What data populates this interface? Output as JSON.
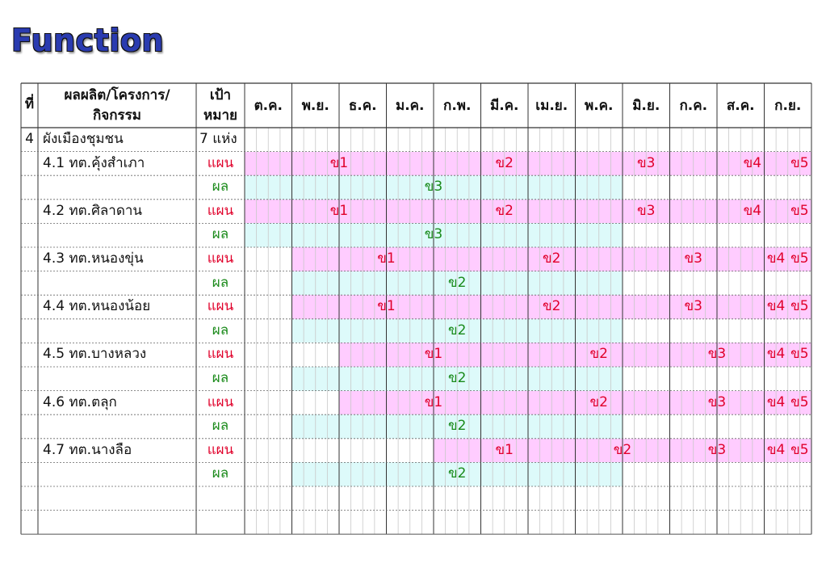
{
  "title": "Function",
  "headers": {
    "no": "ที่",
    "activity_line1": "ผลผลิต/โครงการ/",
    "activity_line2": "กิจกรรม",
    "target_line1": "เป้า",
    "target_line2": "หมาย",
    "months": [
      "ต.ค.",
      "พ.ย.",
      "ธ.ค.",
      "ม.ค.",
      "ก.พ.",
      "มี.ค.",
      "เม.ย.",
      "พ.ค.",
      "มิ.ย.",
      "ก.ค.",
      "ส.ค.",
      "ก.ย."
    ]
  },
  "section": {
    "no": "4",
    "name": "ผังเมืองชุมชน",
    "target": "7 แห่ง"
  },
  "plan_label": "แผน",
  "result_label": "ผล",
  "items": [
    {
      "name": "4.1 ทต.คุ้งสำเภา",
      "plan": [
        {
          "label": "ข1",
          "start": 0,
          "end": 4
        },
        {
          "label": "ข2",
          "start": 4,
          "end": 7
        },
        {
          "label": "ข3",
          "start": 7,
          "end": 10
        },
        {
          "label": "ข4",
          "start": 10,
          "end": 11.5
        },
        {
          "label": "ข5",
          "start": 11.5,
          "end": 12
        }
      ],
      "result": [
        {
          "label": "ข3",
          "start": 0,
          "end": 8
        }
      ]
    },
    {
      "name": "4.2 ทต.ศิลาดาน",
      "plan": [
        {
          "label": "ข1",
          "start": 0,
          "end": 4
        },
        {
          "label": "ข2",
          "start": 4,
          "end": 7
        },
        {
          "label": "ข3",
          "start": 7,
          "end": 10
        },
        {
          "label": "ข4",
          "start": 10,
          "end": 11.5
        },
        {
          "label": "ข5",
          "start": 11.5,
          "end": 12
        }
      ],
      "result": [
        {
          "label": "ข3",
          "start": 0,
          "end": 8
        }
      ]
    },
    {
      "name": "4.3 ทต.หนองขุ่น",
      "plan": [
        {
          "label": "ข1",
          "start": 1,
          "end": 5
        },
        {
          "label": "ข2",
          "start": 5,
          "end": 8
        },
        {
          "label": "ข3",
          "start": 8,
          "end": 11
        },
        {
          "label": "ข4",
          "start": 11,
          "end": 11.5
        },
        {
          "label": "ข5",
          "start": 11.5,
          "end": 12
        }
      ],
      "result": [
        {
          "label": "ข2",
          "start": 1,
          "end": 8
        }
      ]
    },
    {
      "name": "4.4 ทต.หนองน้อย",
      "plan": [
        {
          "label": "ข1",
          "start": 1,
          "end": 5
        },
        {
          "label": "ข2",
          "start": 5,
          "end": 8
        },
        {
          "label": "ข3",
          "start": 8,
          "end": 11
        },
        {
          "label": "ข4",
          "start": 11,
          "end": 11.5
        },
        {
          "label": "ข5",
          "start": 11.5,
          "end": 12
        }
      ],
      "result": [
        {
          "label": "ข2",
          "start": 1,
          "end": 8
        }
      ]
    },
    {
      "name": "4.5 ทต.บางหลวง",
      "plan": [
        {
          "label": "ข1",
          "start": 2,
          "end": 6
        },
        {
          "label": "ข2",
          "start": 6,
          "end": 9
        },
        {
          "label": "ข3",
          "start": 9,
          "end": 11
        },
        {
          "label": "ข4",
          "start": 11,
          "end": 11.5
        },
        {
          "label": "ข5",
          "start": 11.5,
          "end": 12
        }
      ],
      "result": [
        {
          "label": "ข2",
          "start": 1,
          "end": 8
        }
      ]
    },
    {
      "name": "4.6 ทต.ตลุก",
      "plan": [
        {
          "label": "ข1",
          "start": 2,
          "end": 6
        },
        {
          "label": "ข2",
          "start": 6,
          "end": 9
        },
        {
          "label": "ข3",
          "start": 9,
          "end": 11
        },
        {
          "label": "ข4",
          "start": 11,
          "end": 11.5
        },
        {
          "label": "ข5",
          "start": 11.5,
          "end": 12
        }
      ],
      "result": [
        {
          "label": "ข2",
          "start": 1,
          "end": 8
        }
      ]
    },
    {
      "name": "4.7 ทต.นางลือ",
      "plan": [
        {
          "label": "ข1",
          "start": 4,
          "end": 7
        },
        {
          "label": "ข2",
          "start": 7,
          "end": 9
        },
        {
          "label": "ข3",
          "start": 9,
          "end": 11
        },
        {
          "label": "ข4",
          "start": 11,
          "end": 11.5
        },
        {
          "label": "ข5",
          "start": 11.5,
          "end": 12
        }
      ],
      "result": [
        {
          "label": "ข2",
          "start": 1,
          "end": 8
        }
      ]
    }
  ],
  "colors": {
    "plan_bar": "#ffccff",
    "result_bar": "#ddfafa",
    "plan_text": "#e0002a",
    "result_text": "#1a8a1a",
    "title": "#2a3bb0"
  }
}
